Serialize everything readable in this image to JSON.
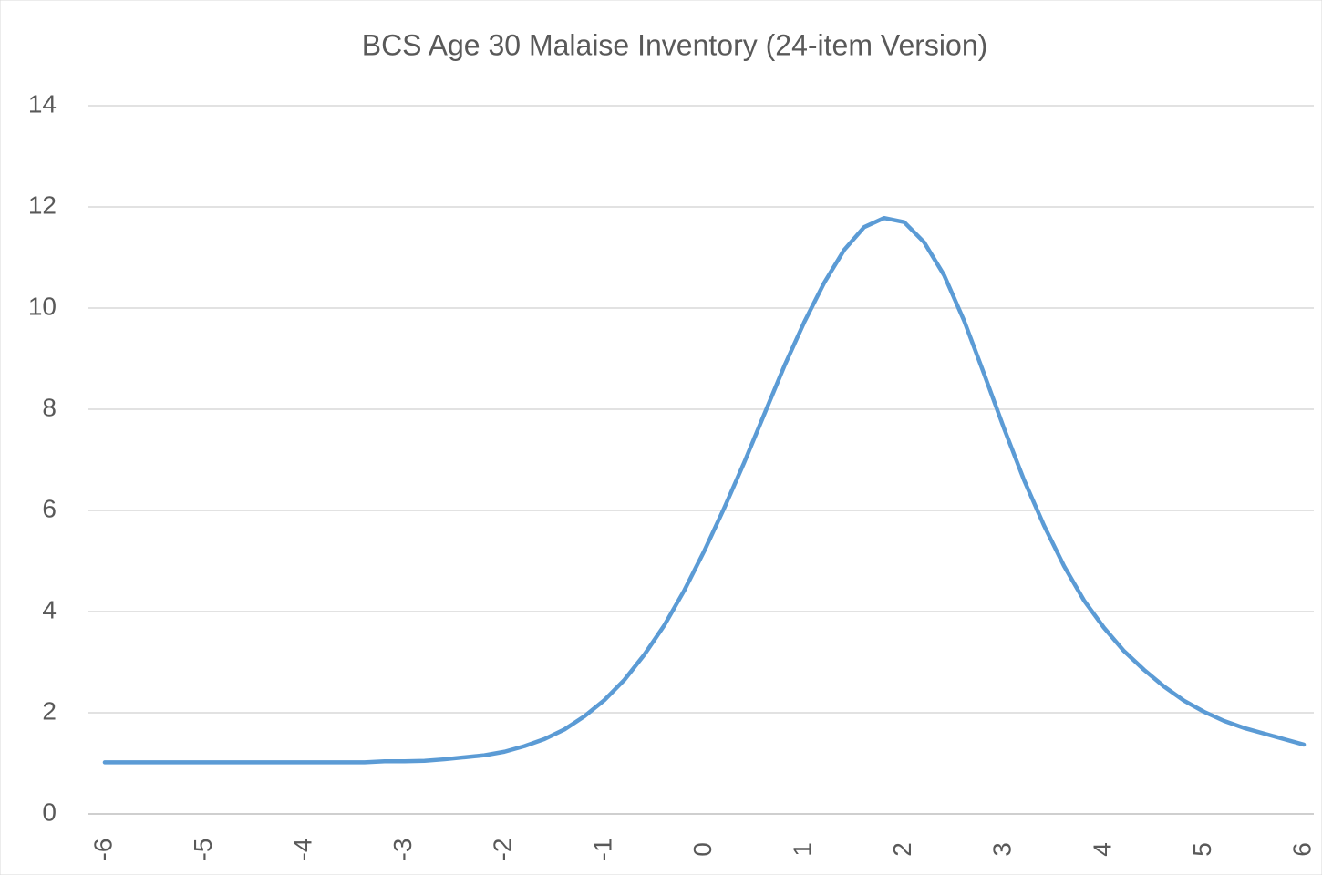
{
  "chart_data": {
    "type": "line",
    "title": "BCS Age 30 Malaise Inventory (24-item Version)",
    "x": [
      -6,
      -5.8,
      -5.6,
      -5.4,
      -5.2,
      -5,
      -4.8,
      -4.6,
      -4.4,
      -4.2,
      -4,
      -3.8,
      -3.6,
      -3.4,
      -3.2,
      -3,
      -2.8,
      -2.6,
      -2.4,
      -2.2,
      -2,
      -1.8,
      -1.6,
      -1.4,
      -1.2,
      -1,
      -0.8,
      -0.6,
      -0.4,
      -0.2,
      0,
      0.2,
      0.4,
      0.6,
      0.8,
      1,
      1.2,
      1.4,
      1.6,
      1.8,
      2,
      2.2,
      2.4,
      2.6,
      2.8,
      3,
      3.2,
      3.4,
      3.6,
      3.8,
      4,
      4.2,
      4.4,
      4.6,
      4.8,
      5,
      5.2,
      5.4,
      5.6,
      5.8,
      6
    ],
    "series": [
      {
        "color": "#5b9bd5",
        "values": [
          1.02,
          1.02,
          1.02,
          1.02,
          1.02,
          1.02,
          1.02,
          1.02,
          1.02,
          1.02,
          1.02,
          1.02,
          1.02,
          1.02,
          1.04,
          1.04,
          1.05,
          1.08,
          1.12,
          1.16,
          1.23,
          1.34,
          1.48,
          1.67,
          1.93,
          2.25,
          2.65,
          3.15,
          3.73,
          4.42,
          5.2,
          6.05,
          6.95,
          7.9,
          8.85,
          9.72,
          10.5,
          11.15,
          11.6,
          11.78,
          11.7,
          11.3,
          10.65,
          9.75,
          8.7,
          7.62,
          6.6,
          5.7,
          4.9,
          4.22,
          3.68,
          3.22,
          2.85,
          2.52,
          2.24,
          2.02,
          1.84,
          1.7,
          1.59,
          1.48,
          1.37
        ]
      }
    ],
    "xlim": [
      -6.1,
      6.1
    ],
    "xticks": [
      -6,
      -5,
      -4,
      -3,
      -2,
      -1,
      0,
      1,
      2,
      3,
      4,
      5,
      6
    ],
    "ylim": [
      0,
      14
    ],
    "yticks": [
      0,
      2,
      4,
      6,
      8,
      10,
      12,
      14
    ],
    "grid": true
  }
}
